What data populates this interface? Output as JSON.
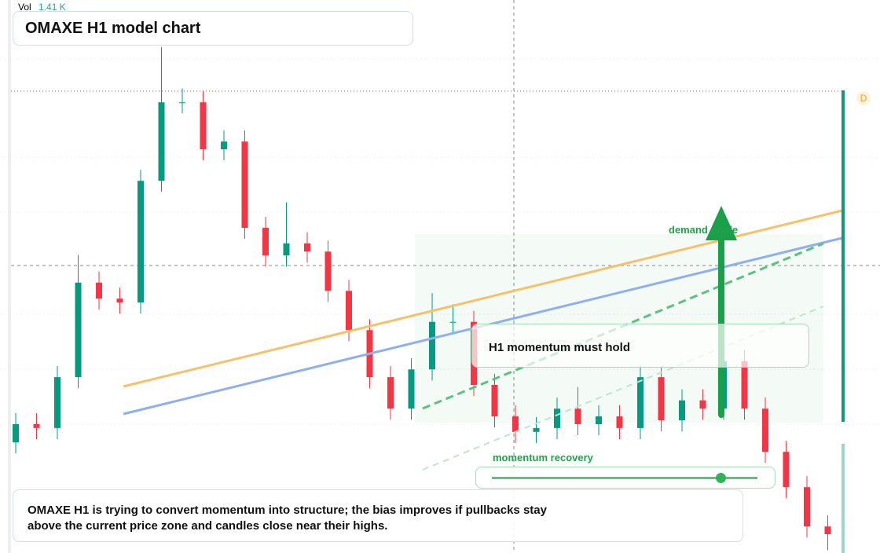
{
  "header": {
    "vol_label": "Vol",
    "vol_value": "1.41 K",
    "title": "OMAXE H1 model chart"
  },
  "annotations": {
    "demand_guide": "demand guide",
    "momentum_hold": "H1 momentum must hold",
    "momentum_recovery": "momentum recovery",
    "badge": "D"
  },
  "description": "OMAXE H1 is trying to convert momentum into structure; the bias improves if pullbacks stay above the current price zone and candles close near their highs.",
  "chart_data": {
    "type": "candlestick",
    "ylim": [
      0,
      100
    ],
    "up_color": "#089981",
    "down_color": "#f23645",
    "open": [
      20.0,
      23.3,
      22.6,
      31.8,
      48.9,
      46.0,
      45.3,
      67.3,
      81.5,
      81.5,
      73.0,
      74.4,
      58.8,
      53.8,
      56.0,
      54.5,
      47.4,
      40.3,
      31.8,
      26.1,
      33.2,
      41.8,
      41.8,
      30.4,
      24.7,
      21.9,
      22.6,
      26.1,
      23.3,
      24.7,
      22.6,
      31.8,
      24.0,
      27.6,
      26.1,
      34.7,
      26.1,
      18.3,
      11.9,
      4.8
    ],
    "high": [
      25.3,
      25.3,
      33.8,
      53.9,
      50.9,
      48.0,
      69.3,
      91.5,
      84.0,
      83.5,
      76.4,
      76.4,
      60.8,
      63.4,
      58.0,
      56.5,
      49.4,
      42.3,
      33.8,
      35.2,
      47.0,
      45.0,
      43.8,
      32.4,
      26.7,
      24.6,
      28.1,
      30.0,
      26.7,
      26.7,
      33.8,
      33.8,
      29.6,
      29.6,
      51.7,
      36.7,
      28.1,
      20.3,
      13.9,
      6.8
    ],
    "low": [
      18.0,
      20.6,
      20.6,
      29.8,
      44.0,
      43.3,
      43.3,
      65.3,
      79.5,
      71.0,
      71.0,
      56.8,
      51.8,
      51.8,
      52.5,
      45.4,
      38.3,
      29.8,
      24.1,
      24.1,
      31.2,
      39.8,
      28.4,
      22.7,
      19.9,
      19.9,
      20.6,
      21.3,
      21.3,
      20.6,
      20.6,
      22.0,
      22.0,
      24.1,
      24.1,
      24.1,
      16.3,
      9.9,
      2.8,
      0.5
    ],
    "close": [
      23.3,
      22.6,
      31.8,
      48.9,
      46.0,
      45.3,
      67.3,
      81.5,
      81.5,
      73.0,
      74.4,
      58.8,
      53.8,
      56.0,
      54.5,
      47.4,
      40.3,
      31.8,
      26.1,
      33.2,
      41.8,
      41.8,
      30.4,
      24.7,
      21.9,
      22.6,
      26.1,
      23.3,
      24.7,
      22.6,
      31.8,
      24.0,
      27.6,
      26.1,
      34.7,
      26.1,
      18.3,
      11.9,
      4.8,
      3.4
    ]
  }
}
